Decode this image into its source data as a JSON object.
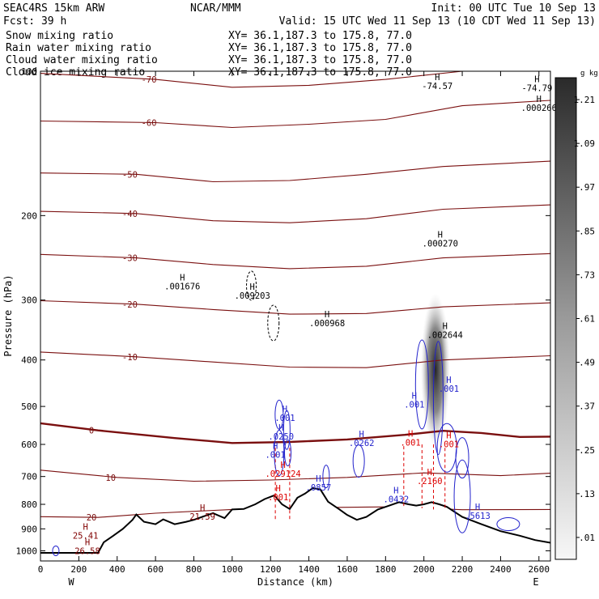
{
  "header": {
    "left_line1": "SEAC4RS 15km ARW",
    "center_line1": "NCAR/MMM",
    "right_line1": "Init: 00 UTC Tue 10 Sep 13",
    "left_line2": "Fcst:    39 h",
    "right_line2": "Valid: 15 UTC Wed 11 Sep 13 (10 CDT Wed 11 Sep 13)"
  },
  "fields": [
    {
      "name": "Snow mixing ratio",
      "xy": "XY=  36.1,187.3 to 175.8, 77.0",
      "color": "#000000"
    },
    {
      "name": "Rain water mixing ratio",
      "xy": "XY=  36.1,187.3 to 175.8, 77.0",
      "color": "#dd0000"
    },
    {
      "name": "Cloud water mixing ratio",
      "xy": "XY=  36.1,187.3 to 175.8, 77.0",
      "color": "#2222cc"
    },
    {
      "name": "Cloud ice mixing ratio",
      "xy": "XY=  36.1,187.3 to 175.8, 77.0",
      "color": "#000000"
    }
  ],
  "chart_data": {
    "type": "cross-section",
    "xlabel": "Distance (km)",
    "ylabel": "Pressure (hPa)",
    "xlim": [
      0,
      2660
    ],
    "ylim": [
      1050,
      100
    ],
    "y_scale": "log",
    "x_ticks": [
      0,
      200,
      400,
      600,
      800,
      1000,
      1200,
      1400,
      1600,
      1800,
      2000,
      2200,
      2400,
      2600
    ],
    "y_ticks": [
      100,
      200,
      300,
      400,
      500,
      600,
      700,
      800,
      900,
      1000
    ],
    "x_end_labels": {
      "west": "W",
      "east": "E"
    },
    "colorbar": {
      "units": "g kg⁻¹",
      "levels": [
        0.01,
        0.13,
        0.25,
        0.37,
        0.49,
        0.61,
        0.73,
        0.85,
        0.97,
        1.09,
        1.21
      ]
    },
    "temperature_contours": [
      {
        "label": "-70",
        "points": [
          [
            0,
            101
          ],
          [
            600,
            104
          ],
          [
            1000,
            108
          ],
          [
            1400,
            107
          ],
          [
            1800,
            104
          ],
          [
            2200,
            100
          ],
          [
            2660,
            100
          ]
        ]
      },
      {
        "label": "-60",
        "points": [
          [
            0,
            127
          ],
          [
            600,
            128
          ],
          [
            1000,
            131
          ],
          [
            1400,
            129
          ],
          [
            1800,
            126
          ],
          [
            2200,
            118
          ],
          [
            2660,
            115
          ]
        ]
      },
      {
        "label": "-50",
        "points": [
          [
            0,
            163
          ],
          [
            500,
            164
          ],
          [
            900,
            170
          ],
          [
            1300,
            169
          ],
          [
            1700,
            164
          ],
          [
            2100,
            158
          ],
          [
            2660,
            154
          ]
        ]
      },
      {
        "label": "-40",
        "points": [
          [
            0,
            196
          ],
          [
            500,
            198
          ],
          [
            900,
            205
          ],
          [
            1300,
            207
          ],
          [
            1700,
            203
          ],
          [
            2100,
            194
          ],
          [
            2660,
            190
          ]
        ]
      },
      {
        "label": "-30",
        "points": [
          [
            0,
            241
          ],
          [
            500,
            245
          ],
          [
            900,
            253
          ],
          [
            1300,
            258
          ],
          [
            1700,
            255
          ],
          [
            2100,
            245
          ],
          [
            2660,
            240
          ]
        ]
      },
      {
        "label": "-20",
        "points": [
          [
            0,
            301
          ],
          [
            500,
            306
          ],
          [
            900,
            314
          ],
          [
            1300,
            321
          ],
          [
            1700,
            320
          ],
          [
            2100,
            310
          ],
          [
            2660,
            304
          ]
        ]
      },
      {
        "label": "-10",
        "points": [
          [
            0,
            385
          ],
          [
            500,
            394
          ],
          [
            900,
            404
          ],
          [
            1300,
            414
          ],
          [
            1700,
            415
          ],
          [
            2100,
            400
          ],
          [
            2660,
            392
          ]
        ]
      },
      {
        "label": "0",
        "points": [
          [
            0,
            542
          ],
          [
            300,
            561
          ],
          [
            700,
            582
          ],
          [
            1000,
            596
          ],
          [
            1300,
            593
          ],
          [
            1600,
            586
          ],
          [
            1900,
            573
          ],
          [
            2100,
            562
          ],
          [
            2300,
            568
          ],
          [
            2500,
            579
          ],
          [
            2660,
            578
          ]
        ]
      },
      {
        "label": "10",
        "points": [
          [
            0,
            679
          ],
          [
            400,
            703
          ],
          [
            800,
            716
          ],
          [
            1200,
            712
          ],
          [
            1600,
            703
          ],
          [
            2000,
            688
          ],
          [
            2400,
            697
          ],
          [
            2660,
            689
          ]
        ]
      },
      {
        "label": "20",
        "points": [
          [
            0,
            849
          ],
          [
            300,
            852
          ],
          [
            600,
            835
          ],
          [
            1000,
            820
          ],
          [
            1400,
            813
          ],
          [
            1800,
            810
          ],
          [
            2200,
            821
          ],
          [
            2660,
            820
          ]
        ]
      }
    ],
    "h_labels": [
      {
        "text": ".001676",
        "x": 740,
        "p": 285,
        "color": "#000000"
      },
      {
        "text": ".009203",
        "x": 1105,
        "p": 298,
        "color": "#000000"
      },
      {
        "text": ".000968",
        "x": 1495,
        "p": 340,
        "color": "#000000"
      },
      {
        "text": ".000270",
        "x": 2085,
        "p": 232,
        "color": "#000000"
      },
      {
        "text": ".002644",
        "x": 2110,
        "p": 360,
        "color": "#000000"
      },
      {
        "text": "-74.57",
        "x": 2070,
        "p": 109,
        "color": "#000000"
      },
      {
        "text": "-74.79",
        "x": 2590,
        "p": 110,
        "color": "#000000"
      },
      {
        "text": ".000266",
        "x": 2600,
        "p": 121,
        "color": "#000000"
      },
      {
        "text": ".001",
        "x": 1275,
        "p": 536,
        "color": "#2222cc"
      },
      {
        "text": ".0250",
        "x": 1255,
        "p": 586,
        "color": "#2222cc"
      },
      {
        "text": ".001",
        "x": 1225,
        "p": 640,
        "color": "#2222cc"
      },
      {
        "text": ".0262",
        "x": 1675,
        "p": 605,
        "color": "#2222cc"
      },
      {
        "text": ".001",
        "x": 1950,
        "p": 503,
        "color": "#2222cc"
      },
      {
        "text": ".001",
        "x": 2130,
        "p": 466,
        "color": "#2222cc"
      },
      {
        "text": ".0857",
        "x": 1450,
        "p": 749,
        "color": "#2222cc"
      },
      {
        "text": ".0432",
        "x": 1855,
        "p": 792,
        "color": "#2222cc"
      },
      {
        "text": ".5613",
        "x": 2280,
        "p": 858,
        "color": "#2222cc"
      },
      {
        "text": ".001",
        "x": 1930,
        "p": 604,
        "color": "#dd0000"
      },
      {
        "text": ".001",
        "x": 2130,
        "p": 608,
        "color": "#dd0000"
      },
      {
        "text": ".029124",
        "x": 1265,
        "p": 701,
        "color": "#dd0000"
      },
      {
        "text": ".2160",
        "x": 2030,
        "p": 726,
        "color": "#dd0000"
      },
      {
        "text": ".001",
        "x": 1240,
        "p": 785,
        "color": "#dd0000"
      },
      {
        "text": "21.59",
        "x": 845,
        "p": 861,
        "color": "#800000"
      },
      {
        "text": "25.41",
        "x": 235,
        "p": 944,
        "color": "#800000"
      },
      {
        "text": "26.58",
        "x": 245,
        "p": 1015,
        "color": "#800000"
      }
    ],
    "terrain": [
      [
        0,
        1010
      ],
      [
        300,
        1010
      ],
      [
        330,
        960
      ],
      [
        380,
        930
      ],
      [
        430,
        900
      ],
      [
        480,
        862
      ],
      [
        500,
        840
      ],
      [
        540,
        870
      ],
      [
        600,
        880
      ],
      [
        640,
        860
      ],
      [
        700,
        880
      ],
      [
        760,
        870
      ],
      [
        800,
        862
      ],
      [
        850,
        848
      ],
      [
        900,
        835
      ],
      [
        960,
        855
      ],
      [
        1000,
        820
      ],
      [
        1060,
        818
      ],
      [
        1120,
        800
      ],
      [
        1170,
        780
      ],
      [
        1220,
        766
      ],
      [
        1260,
        800
      ],
      [
        1300,
        818
      ],
      [
        1340,
        775
      ],
      [
        1380,
        760
      ],
      [
        1420,
        740
      ],
      [
        1460,
        745
      ],
      [
        1500,
        790
      ],
      [
        1560,
        820
      ],
      [
        1600,
        842
      ],
      [
        1650,
        862
      ],
      [
        1700,
        850
      ],
      [
        1760,
        820
      ],
      [
        1800,
        810
      ],
      [
        1870,
        792
      ],
      [
        1920,
        800
      ],
      [
        1960,
        805
      ],
      [
        2000,
        800
      ],
      [
        2040,
        792
      ],
      [
        2080,
        800
      ],
      [
        2120,
        810
      ],
      [
        2200,
        850
      ],
      [
        2300,
        880
      ],
      [
        2400,
        910
      ],
      [
        2500,
        930
      ],
      [
        2580,
        950
      ],
      [
        2660,
        962
      ]
    ]
  }
}
